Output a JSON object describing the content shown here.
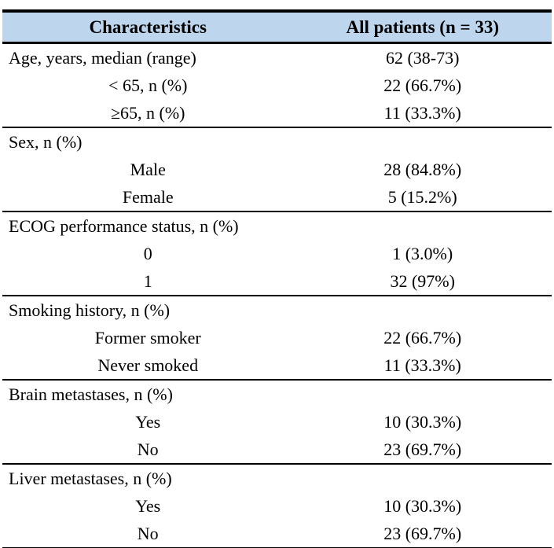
{
  "table": {
    "header": {
      "characteristics": "Characteristics",
      "all_patients": "All patients (n = 33)"
    },
    "sections": [
      {
        "rows": [
          {
            "label": "Age, years, median (range)",
            "value": "62 (38-73)"
          },
          {
            "label": "< 65, n (%)",
            "value": "22 (66.7%)"
          },
          {
            "label": "≥65, n (%)",
            "value": "11 (33.3%)"
          }
        ]
      },
      {
        "rows": [
          {
            "label": "Sex, n (%)",
            "value": ""
          },
          {
            "label": "Male",
            "value": "28 (84.8%)"
          },
          {
            "label": "Female",
            "value": "5 (15.2%)"
          }
        ]
      },
      {
        "rows": [
          {
            "label": "ECOG performance status, n (%)",
            "value": ""
          },
          {
            "label": "0",
            "value": "1 (3.0%)"
          },
          {
            "label": "1",
            "value": "32 (97%)"
          }
        ]
      },
      {
        "rows": [
          {
            "label": "Smoking history, n (%)",
            "value": ""
          },
          {
            "label": "Former smoker",
            "value": "22 (66.7%)"
          },
          {
            "label": "Never smoked",
            "value": "11 (33.3%)"
          }
        ]
      },
      {
        "rows": [
          {
            "label": "Brain metastases, n (%)",
            "value": ""
          },
          {
            "label": "Yes",
            "value": "10 (30.3%)"
          },
          {
            "label": "No",
            "value": "23 (69.7%)"
          }
        ]
      },
      {
        "rows": [
          {
            "label": "Liver metastases, n (%)",
            "value": ""
          },
          {
            "label": "Yes",
            "value": "10 (30.3%)"
          },
          {
            "label": "No",
            "value": "23 (69.7%)"
          }
        ]
      }
    ]
  },
  "colors": {
    "header_bg": "#BDD6EE",
    "border": "#000000"
  }
}
